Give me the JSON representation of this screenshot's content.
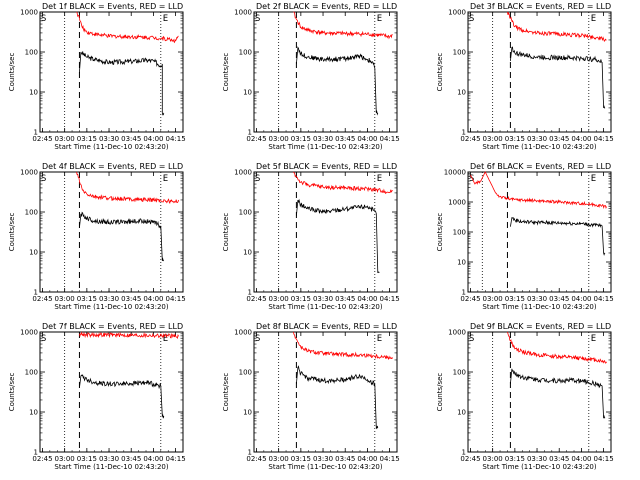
{
  "figure": {
    "xlabel": "Start Time (11-Dec-10 02:43:20)",
    "ylabel": "Counts/sec",
    "x_tick_labels": [
      "02:45",
      "03:00",
      "03:15",
      "03:30",
      "03:45",
      "04:00",
      "04:15"
    ],
    "y_tick_labels": [
      "1",
      "10",
      "100",
      "1000"
    ],
    "y_tick_labels_6f": [
      "1",
      "10",
      "100",
      "1000",
      "10000"
    ],
    "start_marker": "S",
    "end_marker": "E",
    "colors": {
      "events": "#000000",
      "lld": "#ff0000"
    }
  },
  "chart_data": [
    {
      "type": "line",
      "title": "Det 1f BLACK = Events, RED = LLD",
      "x_range": [
        "02:43:20",
        "04:20"
      ],
      "y_scale": "log",
      "ylim": [
        1,
        1000
      ],
      "series": [
        {
          "name": "Events",
          "color": "#000000",
          "x": [
            "03:10",
            "03:11",
            "03:15",
            "03:20",
            "03:30",
            "03:45",
            "03:55",
            "04:00",
            "04:05",
            "04:06",
            "04:06",
            "04:07"
          ],
          "values": [
            30,
            100,
            75,
            65,
            55,
            58,
            62,
            60,
            45,
            50,
            3,
            3
          ]
        },
        {
          "name": "LLD",
          "color": "#ff0000",
          "x": [
            "03:08",
            "03:10",
            "03:12",
            "03:15",
            "03:20",
            "03:30",
            "03:45",
            "04:00",
            "04:10",
            "04:15",
            "04:17"
          ],
          "values": [
            1000,
            700,
            400,
            320,
            280,
            250,
            240,
            230,
            210,
            190,
            250
          ]
        }
      ],
      "vlines_dotted": [
        "03:00",
        "04:05"
      ],
      "vline_dashed": "03:10"
    },
    {
      "type": "line",
      "title": "Det 2f BLACK = Events, RED = LLD",
      "x_range": [
        "02:43:20",
        "04:20"
      ],
      "y_scale": "log",
      "ylim": [
        1,
        1000
      ],
      "series": [
        {
          "name": "Events",
          "color": "#000000",
          "x": [
            "03:12",
            "03:13",
            "03:15",
            "03:20",
            "03:30",
            "03:45",
            "03:55",
            "04:02",
            "04:04",
            "04:05",
            "04:06",
            "04:07"
          ],
          "values": [
            50,
            130,
            90,
            75,
            65,
            68,
            80,
            60,
            50,
            40,
            3,
            3
          ]
        },
        {
          "name": "LLD",
          "color": "#ff0000",
          "x": [
            "03:10",
            "03:12",
            "03:15",
            "03:20",
            "03:30",
            "03:45",
            "04:00",
            "04:10",
            "04:15",
            "04:17"
          ],
          "values": [
            1000,
            650,
            420,
            350,
            300,
            290,
            280,
            260,
            240,
            270
          ]
        }
      ],
      "vlines_dotted": [
        "03:00",
        "04:05"
      ],
      "vline_dashed": "03:12"
    },
    {
      "type": "line",
      "title": "Det 3f BLACK = Events, RED = LLD",
      "x_range": [
        "02:43:20",
        "04:20"
      ],
      "y_scale": "log",
      "ylim": [
        1,
        1000
      ],
      "series": [
        {
          "name": "Events",
          "color": "#000000",
          "x": [
            "03:12",
            "03:13",
            "03:15",
            "03:20",
            "03:30",
            "03:45",
            "04:00",
            "04:10",
            "04:14",
            "04:15",
            "04:16"
          ],
          "values": [
            60,
            130,
            95,
            85,
            75,
            72,
            70,
            65,
            55,
            4,
            4
          ]
        },
        {
          "name": "LLD",
          "color": "#ff0000",
          "x": [
            "03:10",
            "03:12",
            "03:15",
            "03:20",
            "03:30",
            "03:45",
            "04:00",
            "04:10",
            "04:17"
          ],
          "values": [
            1000,
            700,
            430,
            350,
            300,
            280,
            260,
            230,
            200
          ]
        }
      ],
      "vlines_dotted": [
        "03:00",
        "04:05"
      ],
      "vline_dashed": "03:12"
    },
    {
      "type": "line",
      "title": "Det 4f BLACK = Events, RED = LLD",
      "x_range": [
        "02:43:20",
        "04:20"
      ],
      "y_scale": "log",
      "ylim": [
        1,
        1000
      ],
      "series": [
        {
          "name": "Events",
          "color": "#000000",
          "x": [
            "03:10",
            "03:11",
            "03:15",
            "03:20",
            "03:30",
            "03:45",
            "03:55",
            "04:00",
            "04:05",
            "04:06",
            "04:07"
          ],
          "values": [
            40,
            90,
            70,
            60,
            55,
            58,
            60,
            55,
            45,
            6,
            6
          ]
        },
        {
          "name": "LLD",
          "color": "#ff0000",
          "x": [
            "03:08",
            "03:10",
            "03:12",
            "03:15",
            "03:20",
            "03:30",
            "03:45",
            "04:00",
            "04:15",
            "04:17"
          ],
          "values": [
            1000,
            600,
            350,
            280,
            240,
            220,
            210,
            200,
            180,
            200
          ]
        }
      ],
      "vlines_dotted": [
        "03:00",
        "04:05"
      ],
      "vline_dashed": "03:10"
    },
    {
      "type": "line",
      "title": "Det 5f BLACK = Events, RED = LLD",
      "x_range": [
        "02:43:20",
        "04:20"
      ],
      "y_scale": "log",
      "ylim": [
        1,
        1000
      ],
      "series": [
        {
          "name": "Events",
          "color": "#000000",
          "x": [
            "03:12",
            "03:13",
            "03:15",
            "03:20",
            "03:30",
            "03:45",
            "04:00",
            "04:04",
            "04:06",
            "04:07",
            "04:08"
          ],
          "values": [
            80,
            200,
            150,
            120,
            100,
            120,
            140,
            110,
            90,
            3,
            3
          ]
        },
        {
          "name": "LLD",
          "color": "#ff0000",
          "x": [
            "03:10",
            "03:12",
            "03:15",
            "03:20",
            "03:30",
            "03:45",
            "04:00",
            "04:10",
            "04:15",
            "04:17"
          ],
          "values": [
            1000,
            750,
            550,
            480,
            420,
            400,
            380,
            340,
            310,
            350
          ]
        }
      ],
      "vlines_dotted": [
        "03:00",
        "04:05"
      ],
      "vline_dashed": "03:12"
    },
    {
      "type": "line",
      "title": "Det 6f BLACK = Events, RED = LLD",
      "x_range": [
        "02:43:20",
        "04:20"
      ],
      "y_scale": "log",
      "ylim": [
        1,
        10000
      ],
      "series": [
        {
          "name": "Events",
          "color": "#000000",
          "x": [
            "03:12",
            "03:13",
            "03:15",
            "03:20",
            "03:30",
            "03:45",
            "04:00",
            "04:14",
            "04:15",
            "04:16"
          ],
          "values": [
            150,
            300,
            250,
            220,
            210,
            200,
            190,
            160,
            20,
            20
          ]
        },
        {
          "name": "LLD",
          "color": "#ff0000",
          "x": [
            "02:45",
            "02:48",
            "02:52",
            "02:55",
            "02:58",
            "03:02",
            "03:05",
            "03:10",
            "03:15",
            "03:30",
            "03:45",
            "04:00",
            "04:10",
            "04:17"
          ],
          "values": [
            8000,
            4000,
            5000,
            10000,
            5000,
            2000,
            1500,
            1300,
            1200,
            1100,
            1000,
            900,
            800,
            700
          ]
        }
      ],
      "vlines_dotted": [
        "02:53",
        "04:05"
      ],
      "vline_dashed": "03:10"
    },
    {
      "type": "line",
      "title": "Det 7f BLACK = Events, RED = LLD",
      "x_range": [
        "02:43:20",
        "04:20"
      ],
      "y_scale": "log",
      "ylim": [
        1,
        1000
      ],
      "series": [
        {
          "name": "Events",
          "color": "#000000",
          "x": [
            "03:10",
            "03:11",
            "03:15",
            "03:20",
            "03:30",
            "03:45",
            "03:55",
            "04:00",
            "04:05",
            "04:06",
            "04:07"
          ],
          "values": [
            40,
            80,
            65,
            55,
            50,
            52,
            55,
            50,
            45,
            8,
            8
          ]
        },
        {
          "name": "LLD",
          "color": "#ff0000",
          "x": [
            "03:10",
            "03:15",
            "03:30",
            "03:45",
            "04:00",
            "04:10",
            "04:17"
          ],
          "values": [
            900,
            850,
            850,
            830,
            820,
            800,
            780
          ]
        }
      ],
      "vlines_dotted": [
        "03:00",
        "04:05"
      ],
      "vline_dashed": "03:10"
    },
    {
      "type": "line",
      "title": "Det 8f BLACK = Events, RED = LLD",
      "x_range": [
        "02:43:20",
        "04:20"
      ],
      "y_scale": "log",
      "ylim": [
        1,
        1000
      ],
      "series": [
        {
          "name": "Events",
          "color": "#000000",
          "x": [
            "03:12",
            "03:13",
            "03:15",
            "03:20",
            "03:30",
            "03:45",
            "03:55",
            "04:00",
            "04:05",
            "04:06",
            "04:07"
          ],
          "values": [
            50,
            130,
            90,
            70,
            60,
            65,
            80,
            65,
            50,
            4,
            4
          ]
        },
        {
          "name": "LLD",
          "color": "#ff0000",
          "x": [
            "03:10",
            "03:12",
            "03:15",
            "03:20",
            "03:30",
            "03:45",
            "04:00",
            "04:10",
            "04:17"
          ],
          "values": [
            1000,
            650,
            420,
            330,
            290,
            270,
            260,
            240,
            230
          ]
        }
      ],
      "vlines_dotted": [
        "03:00",
        "04:05"
      ],
      "vline_dashed": "03:12"
    },
    {
      "type": "line",
      "title": "Det 9f BLACK = Events, RED = LLD",
      "x_range": [
        "02:43:20",
        "04:20"
      ],
      "y_scale": "log",
      "ylim": [
        1,
        1000
      ],
      "series": [
        {
          "name": "Events",
          "color": "#000000",
          "x": [
            "03:12",
            "03:13",
            "03:15",
            "03:20",
            "03:30",
            "03:45",
            "03:55",
            "04:00",
            "04:05",
            "04:10",
            "04:14",
            "04:15",
            "04:16"
          ],
          "values": [
            50,
            120,
            90,
            75,
            65,
            60,
            62,
            60,
            55,
            50,
            45,
            7,
            7
          ]
        },
        {
          "name": "LLD",
          "color": "#ff0000",
          "x": [
            "03:10",
            "03:12",
            "03:15",
            "03:20",
            "03:30",
            "03:45",
            "04:00",
            "04:10",
            "04:17"
          ],
          "values": [
            1000,
            600,
            380,
            320,
            270,
            240,
            220,
            200,
            180
          ]
        }
      ],
      "vlines_dotted": [
        "03:00",
        "04:05"
      ],
      "vline_dashed": "03:12"
    }
  ]
}
